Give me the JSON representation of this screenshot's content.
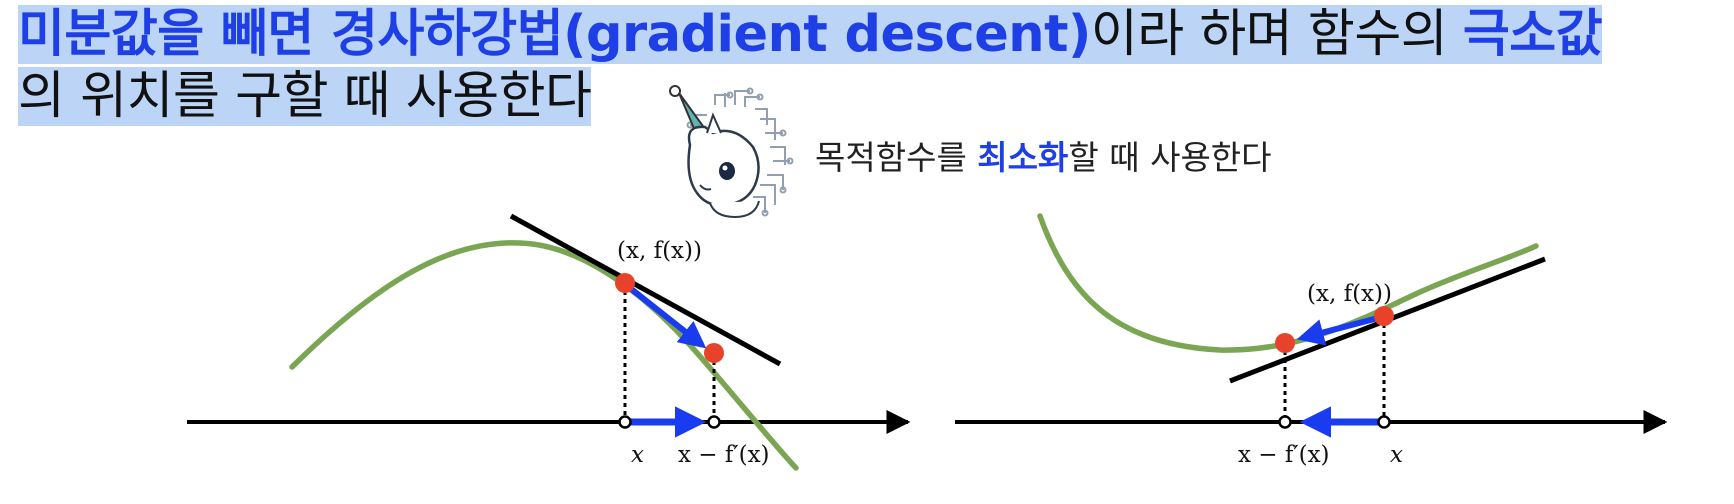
{
  "headline": {
    "em_part1": "미분값을 빼면 경사하강법(gradient descent)",
    "plain_part1": "이라 하며 함수의 ",
    "em_part2": "극소값",
    "line2": "의 위치를 구할 때 사용한다"
  },
  "subnote": {
    "before": "목적함수를 ",
    "em": "최소화",
    "after": "할 때 사용한다"
  },
  "mascot": {
    "icon": "unicorn-mascot-icon"
  },
  "colors": {
    "highlight": "#bcd5f7",
    "emphasis": "#1f3fe6",
    "curve": "#7aa654",
    "arrow": "#1a3cf0",
    "point": "#e8432a",
    "axis": "#000000"
  },
  "left_diagram": {
    "point_label": "(x, f(x))",
    "x_label": "x",
    "next_label": "x − f′(x)"
  },
  "right_diagram": {
    "point_label": "(x, f(x))",
    "x_label": "x",
    "next_label": "x − f′(x)"
  }
}
